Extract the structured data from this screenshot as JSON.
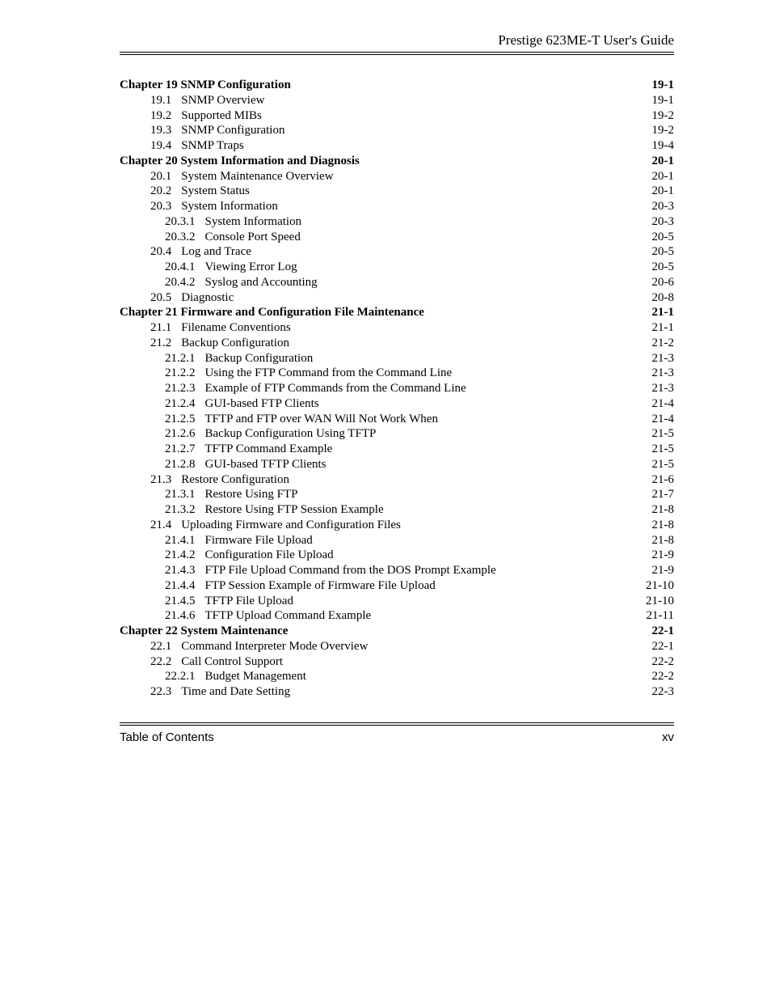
{
  "header": "Prestige 623ME-T User's Guide",
  "footer_left": "Table of Contents",
  "footer_right": "xv",
  "entries": [
    {
      "indent": 0,
      "chapter": true,
      "num": "Chapter 19",
      "title": "SNMP Configuration",
      "page": "19-1"
    },
    {
      "indent": 1,
      "chapter": false,
      "num": "19.1",
      "title": "SNMP Overview",
      "page": "19-1"
    },
    {
      "indent": 1,
      "chapter": false,
      "num": "19.2",
      "title": "Supported MIBs",
      "page": "19-2"
    },
    {
      "indent": 1,
      "chapter": false,
      "num": "19.3",
      "title": "SNMP Configuration",
      "page": "19-2"
    },
    {
      "indent": 1,
      "chapter": false,
      "num": "19.4",
      "title": "SNMP Traps",
      "page": "19-4"
    },
    {
      "indent": 0,
      "chapter": true,
      "num": "Chapter 20",
      "title": "System Information and Diagnosis",
      "page": "20-1"
    },
    {
      "indent": 1,
      "chapter": false,
      "num": "20.1",
      "title": "System Maintenance Overview",
      "page": "20-1"
    },
    {
      "indent": 1,
      "chapter": false,
      "num": "20.2",
      "title": "System Status",
      "page": "20-1"
    },
    {
      "indent": 1,
      "chapter": false,
      "num": "20.3",
      "title": "System Information",
      "page": "20-3"
    },
    {
      "indent": 2,
      "chapter": false,
      "num": "20.3.1",
      "title": "System Information",
      "page": "20-3"
    },
    {
      "indent": 2,
      "chapter": false,
      "num": "20.3.2",
      "title": "Console Port Speed",
      "page": "20-5"
    },
    {
      "indent": 1,
      "chapter": false,
      "num": "20.4",
      "title": "Log and Trace",
      "page": "20-5"
    },
    {
      "indent": 2,
      "chapter": false,
      "num": "20.4.1",
      "title": "Viewing Error Log",
      "page": "20-5"
    },
    {
      "indent": 2,
      "chapter": false,
      "num": "20.4.2",
      "title": "Syslog and Accounting",
      "page": "20-6"
    },
    {
      "indent": 1,
      "chapter": false,
      "num": "20.5",
      "title": "Diagnostic",
      "page": "20-8"
    },
    {
      "indent": 0,
      "chapter": true,
      "num": "Chapter 21",
      "title": "Firmware and Configuration File Maintenance",
      "page": "21-1"
    },
    {
      "indent": 1,
      "chapter": false,
      "num": "21.1",
      "title": "Filename Conventions",
      "page": "21-1"
    },
    {
      "indent": 1,
      "chapter": false,
      "num": "21.2",
      "title": "Backup Configuration",
      "page": "21-2"
    },
    {
      "indent": 2,
      "chapter": false,
      "num": "21.2.1",
      "title": "Backup Configuration",
      "page": "21-3"
    },
    {
      "indent": 2,
      "chapter": false,
      "num": "21.2.2",
      "title": "Using the FTP Command from the Command Line",
      "page": "21-3"
    },
    {
      "indent": 2,
      "chapter": false,
      "num": "21.2.3",
      "title": "Example of FTP Commands from the Command Line",
      "page": "21-3"
    },
    {
      "indent": 2,
      "chapter": false,
      "num": "21.2.4",
      "title": "GUI-based FTP Clients",
      "page": "21-4"
    },
    {
      "indent": 2,
      "chapter": false,
      "num": "21.2.5",
      "title": "TFTP and FTP over WAN Will Not Work When",
      "page": "21-4"
    },
    {
      "indent": 2,
      "chapter": false,
      "num": "21.2.6",
      "title": "Backup Configuration Using TFTP",
      "page": "21-5"
    },
    {
      "indent": 2,
      "chapter": false,
      "num": "21.2.7",
      "title": "TFTP Command Example",
      "page": "21-5"
    },
    {
      "indent": 2,
      "chapter": false,
      "num": "21.2.8",
      "title": "GUI-based TFTP Clients",
      "page": "21-5"
    },
    {
      "indent": 1,
      "chapter": false,
      "num": "21.3",
      "title": "Restore Configuration",
      "page": "21-6"
    },
    {
      "indent": 2,
      "chapter": false,
      "num": "21.3.1",
      "title": "Restore Using FTP",
      "page": "21-7"
    },
    {
      "indent": 2,
      "chapter": false,
      "num": "21.3.2",
      "title": "Restore Using FTP Session Example",
      "page": "21-8"
    },
    {
      "indent": 1,
      "chapter": false,
      "num": "21.4",
      "title": "Uploading Firmware and Configuration Files",
      "page": "21-8"
    },
    {
      "indent": 2,
      "chapter": false,
      "num": "21.4.1",
      "title": "Firmware File Upload",
      "page": "21-8"
    },
    {
      "indent": 2,
      "chapter": false,
      "num": "21.4.2",
      "title": "Configuration File Upload",
      "page": "21-9"
    },
    {
      "indent": 2,
      "chapter": false,
      "num": "21.4.3",
      "title": "FTP File Upload Command from the DOS Prompt Example",
      "page": "21-9"
    },
    {
      "indent": 2,
      "chapter": false,
      "num": "21.4.4",
      "title": "FTP Session Example of Firmware File Upload",
      "page": "21-10"
    },
    {
      "indent": 2,
      "chapter": false,
      "num": "21.4.5",
      "title": "TFTP File Upload",
      "page": "21-10"
    },
    {
      "indent": 2,
      "chapter": false,
      "num": "21.4.6",
      "title": "TFTP Upload Command Example",
      "page": "21-11"
    },
    {
      "indent": 0,
      "chapter": true,
      "num": "Chapter 22",
      "title": "System Maintenance",
      "page": "22-1"
    },
    {
      "indent": 1,
      "chapter": false,
      "num": "22.1",
      "title": "Command Interpreter Mode Overview",
      "page": "22-1"
    },
    {
      "indent": 1,
      "chapter": false,
      "num": "22.2",
      "title": "Call Control Support",
      "page": "22-2"
    },
    {
      "indent": 2,
      "chapter": false,
      "num": "22.2.1",
      "title": "Budget Management",
      "page": "22-2"
    },
    {
      "indent": 1,
      "chapter": false,
      "num": "22.3",
      "title": "Time and Date Setting",
      "page": "22-3"
    }
  ]
}
